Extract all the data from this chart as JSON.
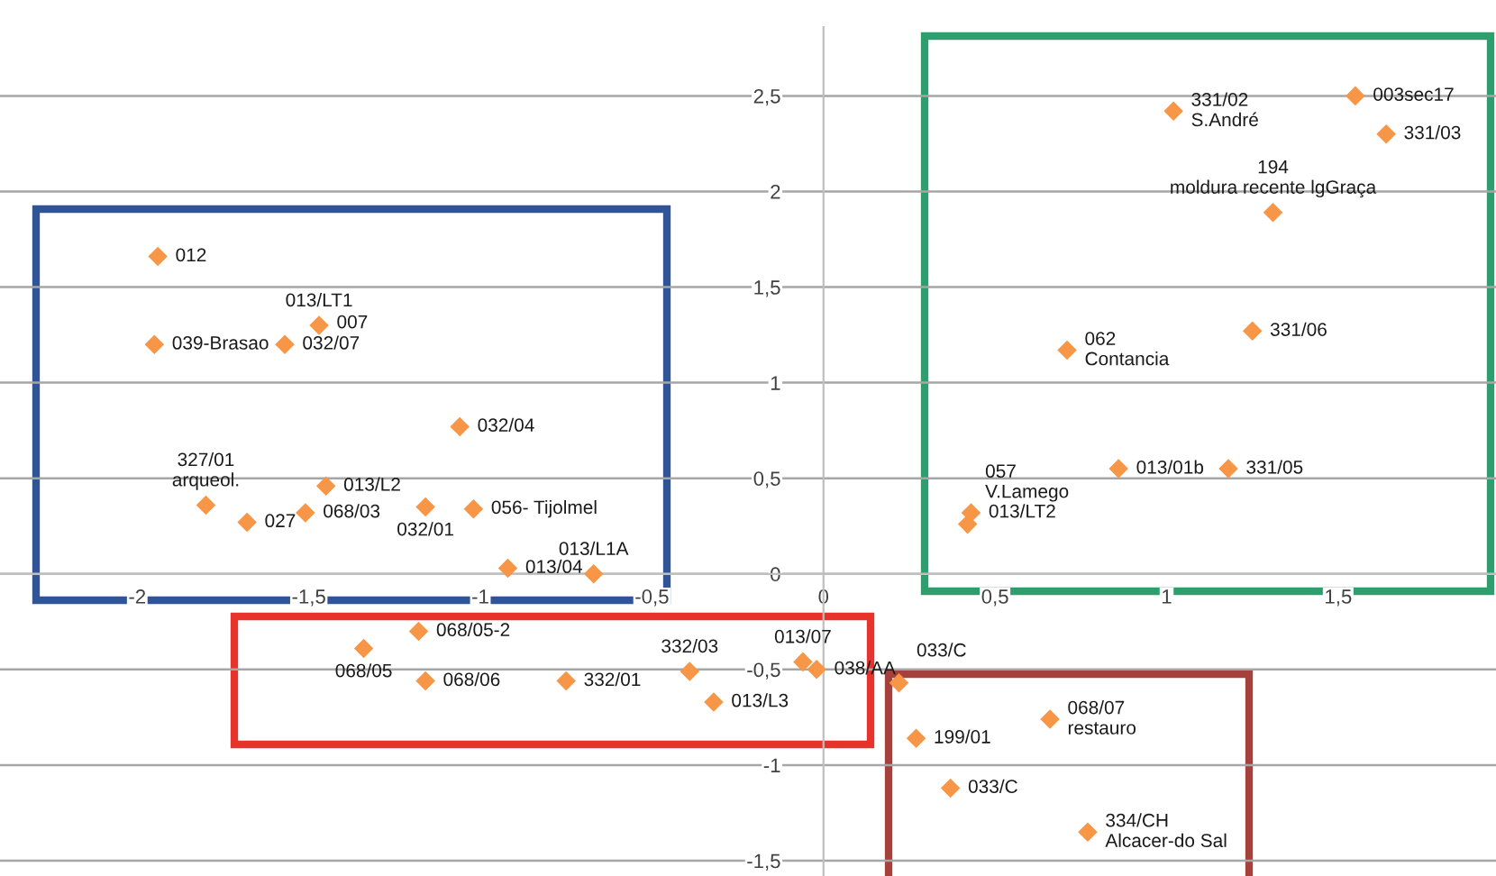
{
  "chart_data": {
    "type": "scatter",
    "x": [
      -1.94,
      -1.95,
      -1.57,
      -1.47,
      -1.06,
      -1.45,
      -1.8,
      -1.68,
      -1.51,
      -1.16,
      -1.02,
      -0.92,
      -0.67,
      -1.18,
      -1.34,
      -1.16,
      -0.75,
      -0.39,
      -0.32,
      -0.06,
      -0.02,
      0.22,
      0.27,
      0.66,
      0.37,
      0.77,
      1.02,
      1.55,
      1.64,
      1.31,
      1.25,
      0.71,
      0.86,
      1.18,
      0.43,
      0.42
    ],
    "series": [
      {
        "color": "#f79646",
        "values": [
          1.66,
          1.2,
          1.2,
          1.3,
          0.77,
          0.46,
          0.36,
          0.27,
          0.32,
          0.35,
          0.34,
          0.03,
          0.0,
          -0.3,
          -0.39,
          -0.56,
          -0.56,
          -0.51,
          -0.67,
          -0.46,
          -0.5,
          -0.57,
          -0.86,
          -0.76,
          -1.12,
          -1.35,
          2.42,
          2.5,
          2.3,
          1.89,
          1.27,
          1.17,
          0.55,
          0.55,
          0.32,
          0.26
        ]
      }
    ],
    "annotations": [
      {
        "text": "012",
        "x": -1.94,
        "y": 1.66
      },
      {
        "text": "039-Brasao",
        "x": -1.95,
        "y": 1.2
      },
      {
        "text": "032/07",
        "x": -1.57,
        "y": 1.2
      },
      {
        "text": "007",
        "x": -1.47,
        "y": 1.31
      },
      {
        "text": "013/LT1",
        "x": -1.47,
        "y": 1.3
      },
      {
        "text": "032/04",
        "x": -1.06,
        "y": 0.77
      },
      {
        "text": "013/L2",
        "x": -1.45,
        "y": 0.46
      },
      {
        "text": "327/01\narqueol.",
        "x": -1.8,
        "y": 0.36
      },
      {
        "text": "027",
        "x": -1.68,
        "y": 0.27
      },
      {
        "text": "068/03",
        "x": -1.51,
        "y": 0.32
      },
      {
        "text": "032/01",
        "x": -1.16,
        "y": 0.35
      },
      {
        "text": "056- Tijolmel",
        "x": -1.02,
        "y": 0.34
      },
      {
        "text": "013/04",
        "x": -0.92,
        "y": 0.03
      },
      {
        "text": "013/L1A",
        "x": -0.67,
        "y": 0.0
      },
      {
        "text": "068/05-2",
        "x": -1.18,
        "y": -0.3
      },
      {
        "text": "068/05",
        "x": -1.34,
        "y": -0.39
      },
      {
        "text": "068/06",
        "x": -1.16,
        "y": -0.56
      },
      {
        "text": "332/01",
        "x": -0.75,
        "y": -0.56
      },
      {
        "text": "332/03",
        "x": -0.39,
        "y": -0.51
      },
      {
        "text": "013/L3",
        "x": -0.32,
        "y": -0.67
      },
      {
        "text": "013/07",
        "x": -0.06,
        "y": -0.46
      },
      {
        "text": "038/AA",
        "x": -0.02,
        "y": -0.5
      },
      {
        "text": "033/C",
        "x": 0.22,
        "y": -0.57
      },
      {
        "text": "199/01",
        "x": 0.27,
        "y": -0.86
      },
      {
        "text": "068/07\nrestauro",
        "x": 0.66,
        "y": -0.76
      },
      {
        "text": "033/C",
        "x": 0.37,
        "y": -1.12
      },
      {
        "text": "334/CH\nAlcacer-do Sal",
        "x": 0.77,
        "y": -1.35
      },
      {
        "text": "331/02\nS.André",
        "x": 1.02,
        "y": 2.42
      },
      {
        "text": "003sec17",
        "x": 1.55,
        "y": 2.5
      },
      {
        "text": "331/03",
        "x": 1.64,
        "y": 2.3
      },
      {
        "text": "194\nmoldura recente lgGraça",
        "x": 1.31,
        "y": 1.89
      },
      {
        "text": "331/06",
        "x": 1.25,
        "y": 1.27
      },
      {
        "text": "062\nContancia",
        "x": 0.71,
        "y": 1.17
      },
      {
        "text": "013/01b",
        "x": 0.86,
        "y": 0.55
      },
      {
        "text": "331/05",
        "x": 1.18,
        "y": 0.55
      },
      {
        "text": "013/LT2",
        "x": 0.43,
        "y": 0.32
      },
      {
        "text": "057\nV.Lamego",
        "x": 0.42,
        "y": 0.26
      }
    ],
    "marker": "diamond",
    "grid": "y",
    "xlim": [
      -2.4,
      1.96
    ],
    "ylim": [
      -1.58,
      2.86
    ],
    "xticks": [
      -2,
      {
        "value": -1.5,
        "label": "-1,5"
      },
      -1,
      {
        "value": -0.5,
        "label": "-0,5"
      },
      0,
      {
        "value": 0.5,
        "label": "0,5"
      },
      1,
      {
        "value": 1.5,
        "label": "1,5"
      }
    ],
    "yticks": [
      {
        "value": -1.5,
        "label": "-1,5"
      },
      -1,
      {
        "value": -0.5,
        "label": "-0,5"
      },
      0,
      {
        "value": 0.5,
        "label": "0,5"
      },
      1,
      {
        "value": 1.5,
        "label": "1,5"
      },
      2,
      {
        "value": 2.5,
        "label": "2,5"
      }
    ]
  }
}
